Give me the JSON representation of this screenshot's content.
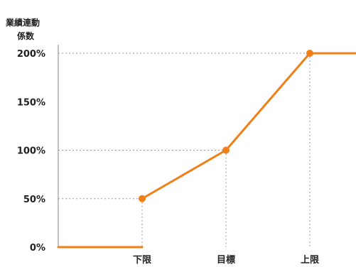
{
  "chart_data": {
    "type": "line",
    "ylabel": [
      "業績連動",
      "係数"
    ],
    "x_tick_labels": [
      "下限",
      "目標",
      "上限"
    ],
    "y_tick_labels": [
      "0%",
      "50%",
      "100%",
      "150%",
      "200%"
    ],
    "ylim": [
      0,
      200
    ],
    "series_color": "#f07f17",
    "grid_color": "#9a9a9a",
    "series": [
      {
        "points": [
          {
            "x": "start",
            "y": 0
          },
          {
            "x": "下限",
            "y": 0,
            "marker": false
          },
          {
            "x": "下限",
            "y": 50,
            "marker": true,
            "segment_break_before": true
          },
          {
            "x": "目標",
            "y": 100,
            "marker": true
          },
          {
            "x": "上限",
            "y": 200,
            "marker": true
          },
          {
            "x": "end",
            "y": 200,
            "marker": false
          }
        ]
      }
    ]
  }
}
